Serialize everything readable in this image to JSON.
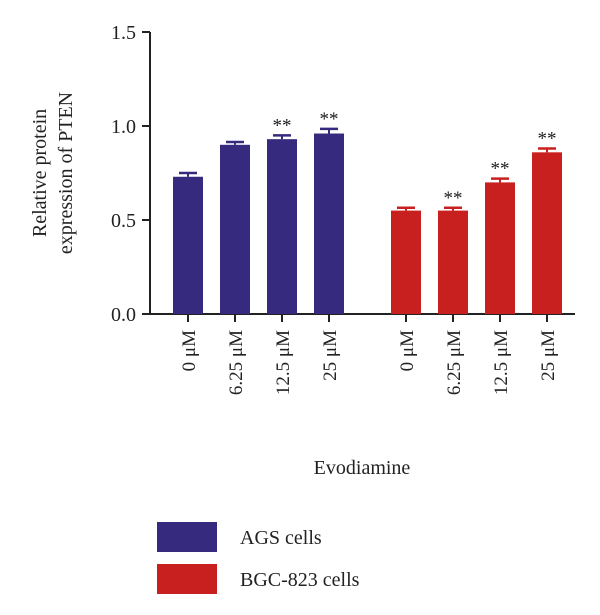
{
  "chart_data": {
    "type": "bar",
    "ylabel": "Relative protein\nexpression of PTEN",
    "xlabel": "Evodiamine",
    "ylim": [
      0,
      1.5
    ],
    "yticks": [
      "0.0",
      "0.5",
      "1.0",
      "1.5"
    ],
    "categories": [
      "0 μM",
      "6.25 μM",
      "12.5 μM",
      "25 μM"
    ],
    "grid": false,
    "legend_position": "bottom",
    "series": [
      {
        "name": "AGS cells",
        "color": "#362a7e",
        "values": [
          0.73,
          0.9,
          0.93,
          0.96
        ],
        "errors": [
          0.02,
          0.015,
          0.02,
          0.025
        ],
        "significance": [
          "",
          "",
          "**",
          "**"
        ]
      },
      {
        "name": "BGC-823 cells",
        "color": "#c8201e",
        "values": [
          0.55,
          0.55,
          0.7,
          0.86
        ],
        "errors": [
          0.015,
          0.015,
          0.02,
          0.02
        ],
        "significance": [
          "",
          "**",
          "**",
          "**"
        ]
      }
    ]
  }
}
